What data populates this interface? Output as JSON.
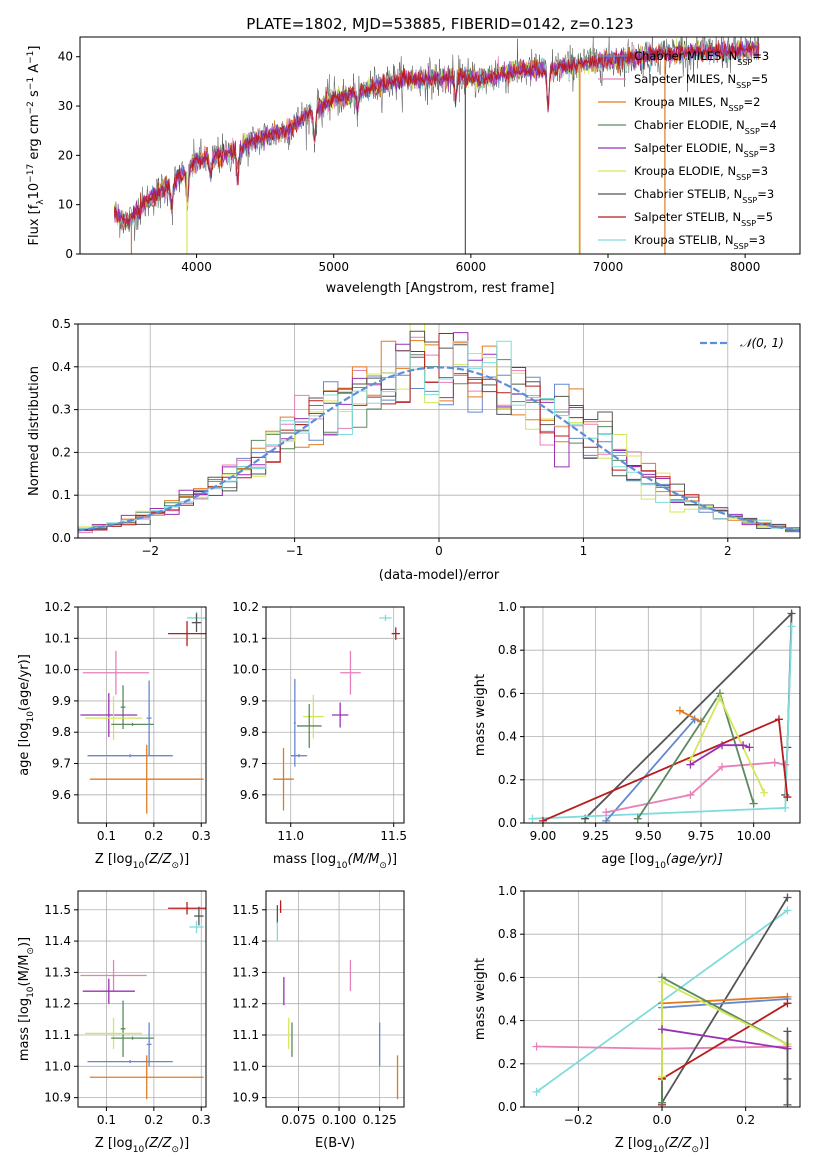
{
  "colors": {
    "chabrier_miles": "#6688cc",
    "salpeter_miles": "#e87fb8",
    "kroupa_miles": "#e07b20",
    "chabrier_elodie": "#5a8a5e",
    "salpeter_elodie": "#9b30b5",
    "kroupa_elodie": "#d6e65a",
    "chabrier_stelib": "#555555",
    "salpeter_stelib": "#b81c1c",
    "kroupa_stelib": "#80dcdc",
    "gauss": "#5b8fd9"
  },
  "chart_data": [
    {
      "id": "spectrum",
      "type": "line",
      "title": "PLATE=1802, MJD=53885, FIBERID=0142, z=0.123",
      "xlabel": "wavelength [Angstrom, rest frame]",
      "ylabel_parts": [
        "Flux [f",
        "λ",
        "10",
        "−17",
        " erg cm",
        "−2",
        " s",
        "−1",
        " A",
        "−1",
        "]"
      ],
      "xlim": [
        3150,
        8400
      ],
      "ylim": [
        0,
        44
      ],
      "xticks": [
        4000,
        5000,
        6000,
        7000,
        8000
      ],
      "yticks": [
        0,
        10,
        20,
        30,
        40
      ],
      "legend": [
        {
          "text": "Chabrier MILES, N",
          "sub": "SSP",
          "tail": "=3",
          "key": "chabrier_miles"
        },
        {
          "text": "Salpeter MILES, N",
          "sub": "SSP",
          "tail": "=5",
          "key": "salpeter_miles"
        },
        {
          "text": "Kroupa MILES, N",
          "sub": "SSP",
          "tail": "=2",
          "key": "kroupa_miles"
        },
        {
          "text": "Chabrier ELODIE, N",
          "sub": "SSP",
          "tail": "=4",
          "key": "chabrier_elodie"
        },
        {
          "text": "Salpeter ELODIE, N",
          "sub": "SSP",
          "tail": "=3",
          "key": "salpeter_elodie"
        },
        {
          "text": "Kroupa ELODIE, N",
          "sub": "SSP",
          "tail": "=3",
          "key": "kroupa_elodie"
        },
        {
          "text": "Chabrier STELIB, N",
          "sub": "SSP",
          "tail": "=3",
          "key": "chabrier_stelib"
        },
        {
          "text": "Salpeter STELIB, N",
          "sub": "SSP",
          "tail": "=5",
          "key": "salpeter_stelib"
        },
        {
          "text": "Kroupa STELIB, N",
          "sub": "SSP",
          "tail": "=3",
          "key": "kroupa_stelib"
        }
      ],
      "continuum": [
        [
          3400,
          8
        ],
        [
          3500,
          6.5
        ],
        [
          3650,
          11
        ],
        [
          3800,
          14
        ],
        [
          3900,
          16
        ],
        [
          4000,
          19
        ],
        [
          4100,
          19.5
        ],
        [
          4250,
          20.5
        ],
        [
          4350,
          22
        ],
        [
          4500,
          24
        ],
        [
          4650,
          25
        ],
        [
          4800,
          28
        ],
        [
          4900,
          30
        ],
        [
          5000,
          31.5
        ],
        [
          5100,
          32
        ],
        [
          5200,
          33
        ],
        [
          5300,
          34
        ],
        [
          5500,
          35.5
        ],
        [
          5700,
          35.5
        ],
        [
          5900,
          36
        ],
        [
          6100,
          35.5
        ],
        [
          6300,
          37
        ],
        [
          6500,
          37.5
        ],
        [
          6700,
          38
        ],
        [
          6900,
          39
        ],
        [
          7100,
          39.5
        ],
        [
          7200,
          40
        ],
        [
          7400,
          40.5
        ],
        [
          7600,
          41
        ],
        [
          7800,
          41
        ],
        [
          8100,
          41.5
        ]
      ],
      "dips": [
        [
          3820,
          5
        ],
        [
          3933,
          6
        ],
        [
          4102,
          4
        ],
        [
          4300,
          6
        ],
        [
          4861,
          6
        ],
        [
          5175,
          4
        ],
        [
          5890,
          5
        ],
        [
          6563,
          8
        ]
      ],
      "spikes": [
        {
          "x": 6790,
          "key": "kroupa_elodie"
        },
        {
          "x": 6795,
          "key": "kroupa_miles"
        },
        {
          "x": 7415,
          "key": "kroupa_miles"
        },
        {
          "x": 3930,
          "key": "kroupa_elodie"
        },
        {
          "x": 3525,
          "key": "kroupa_miles"
        },
        {
          "x": 5960,
          "key": "chabrier_stelib"
        }
      ]
    },
    {
      "id": "residual-hist",
      "type": "histogram",
      "xlabel": "(data-model)/error",
      "ylabel": "Normed distribution",
      "xlim": [
        -2.5,
        2.5
      ],
      "ylim": [
        0,
        0.5
      ],
      "xticks": [
        -2,
        -1,
        0,
        1,
        2
      ],
      "yticks": [
        0.0,
        0.1,
        0.2,
        0.3,
        0.4,
        0.5
      ],
      "bin_width": 0.1,
      "gauss_label": "𝒩(0, 1)",
      "series_keys": [
        "chabrier_miles",
        "salpeter_miles",
        "kroupa_miles",
        "chabrier_elodie",
        "salpeter_elodie",
        "kroupa_elodie",
        "chabrier_stelib",
        "salpeter_stelib",
        "kroupa_stelib"
      ]
    },
    {
      "id": "z-age",
      "type": "errorbar",
      "xlabel_parts": [
        "Z [log",
        "10",
        "(Z/Z",
        "⊙",
        ")]"
      ],
      "ylabel_parts": [
        "age  [log",
        "10",
        "(age/yr)]"
      ],
      "xlim": [
        0.04,
        0.31
      ],
      "ylim": [
        9.51,
        10.2
      ],
      "xticks": [
        0.1,
        0.2,
        0.3
      ],
      "yticks": [
        9.6,
        9.7,
        9.8,
        9.9,
        10.0,
        10.1,
        10.2
      ],
      "points": [
        {
          "key": "salpeter_stelib",
          "x": 0.27,
          "y": 10.115,
          "ex": 0.04,
          "ey": 0.04
        },
        {
          "key": "kroupa_stelib",
          "x": 0.29,
          "y": 10.165,
          "ex": 0.02,
          "ey": 0.02
        },
        {
          "key": "chabrier_stelib",
          "x": 0.29,
          "y": 10.15,
          "ex": 0.01,
          "ey": 0.03
        },
        {
          "key": "salpeter_miles",
          "x": 0.12,
          "y": 9.99,
          "ex": 0.07,
          "ey": 0.07
        },
        {
          "key": "chabrier_elodie",
          "x": 0.135,
          "y": 9.88,
          "ex": 0.005,
          "ey": 0.07
        },
        {
          "key": "salpeter_elodie",
          "x": 0.105,
          "y": 9.855,
          "ex": 0.06,
          "ey": 0.07
        },
        {
          "key": "kroupa_elodie",
          "x": 0.115,
          "y": 9.845,
          "ex": 0.06,
          "ey": 0.07
        },
        {
          "key": "chabrier_elodie",
          "x": 0.155,
          "y": 9.825,
          "ex": 0.045,
          "ey": 0.005
        },
        {
          "key": "chabrier_miles",
          "x": 0.19,
          "y": 9.845,
          "ex": 0.005,
          "ey": 0.12
        },
        {
          "key": "chabrier_miles",
          "x": 0.15,
          "y": 9.725,
          "ex": 0.09,
          "ey": 0.005
        },
        {
          "key": "kroupa_miles",
          "x": 0.185,
          "y": 9.65,
          "ex": 0.12,
          "ey": 0.11
        }
      ]
    },
    {
      "id": "mass-age",
      "type": "errorbar",
      "xlabel_parts": [
        "mass [log",
        "10",
        "(M/M",
        "⊙",
        ")]"
      ],
      "ylabel_parts": [],
      "xlim": [
        10.88,
        11.55
      ],
      "ylim": [
        9.51,
        10.2
      ],
      "xticks": [
        11.0,
        11.5
      ],
      "yticks": [
        9.6,
        9.7,
        9.8,
        9.9,
        10.0,
        10.1,
        10.2
      ],
      "points": [
        {
          "key": "salpeter_stelib",
          "x": 11.51,
          "y": 10.115,
          "ex": 0.02,
          "ey": 0.02
        },
        {
          "key": "kroupa_stelib",
          "x": 11.46,
          "y": 10.165,
          "ex": 0.03,
          "ey": 0.01
        },
        {
          "key": "salpeter_miles",
          "x": 11.29,
          "y": 9.99,
          "ex": 0.05,
          "ey": 0.07
        },
        {
          "key": "salpeter_elodie",
          "x": 11.24,
          "y": 9.855,
          "ex": 0.04,
          "ey": 0.04
        },
        {
          "key": "kroupa_elodie",
          "x": 11.11,
          "y": 9.85,
          "ex": 0.05,
          "ey": 0.07
        },
        {
          "key": "chabrier_elodie",
          "x": 11.09,
          "y": 9.82,
          "ex": 0.06,
          "ey": 0.07
        },
        {
          "key": "chabrier_miles",
          "x": 11.02,
          "y": 9.83,
          "ex": 0.005,
          "ey": 0.14
        },
        {
          "key": "chabrier_miles",
          "x": 11.04,
          "y": 9.725,
          "ex": 0.04,
          "ey": 0.005
        },
        {
          "key": "kroupa_miles",
          "x": 10.965,
          "y": 9.65,
          "ex": 0.05,
          "ey": 0.1
        }
      ]
    },
    {
      "id": "age-massweight",
      "type": "line",
      "xlabel_parts": [
        "age  [log",
        "10",
        "(age/yr)]"
      ],
      "ylabel": "mass weight",
      "xlim": [
        8.91,
        10.22
      ],
      "ylim": [
        0,
        1
      ],
      "xticks": [
        9.0,
        9.25,
        9.5,
        9.75,
        10.0
      ],
      "yticks": [
        0.0,
        0.2,
        0.4,
        0.6,
        0.8,
        1.0
      ],
      "series": [
        {
          "key": "chabrier_stelib",
          "points": [
            [
              9.2,
              0.02
            ],
            [
              10.18,
              0.97
            ],
            [
              10.16,
              0.35
            ],
            [
              10.15,
              0.13
            ]
          ]
        },
        {
          "key": "kroupa_stelib",
          "points": [
            [
              8.95,
              0.02
            ],
            [
              10.15,
              0.07
            ],
            [
              10.18,
              0.91
            ]
          ]
        },
        {
          "key": "chabrier_miles",
          "points": [
            [
              9.3,
              0.01
            ],
            [
              9.72,
              0.48
            ],
            [
              9.75,
              0.47
            ]
          ]
        },
        {
          "key": "kroupa_miles",
          "points": [
            [
              9.65,
              0.52
            ],
            [
              9.75,
              0.47
            ]
          ]
        },
        {
          "key": "salpeter_miles",
          "points": [
            [
              9.3,
              0.05
            ],
            [
              9.7,
              0.13
            ],
            [
              9.85,
              0.26
            ],
            [
              10.1,
              0.28
            ],
            [
              10.15,
              0.27
            ]
          ]
        },
        {
          "key": "salpeter_stelib",
          "points": [
            [
              9.0,
              0.01
            ],
            [
              10.12,
              0.48
            ],
            [
              10.16,
              0.12
            ]
          ]
        },
        {
          "key": "chabrier_elodie",
          "points": [
            [
              9.45,
              0.02
            ],
            [
              9.84,
              0.6
            ],
            [
              10.0,
              0.09
            ]
          ]
        },
        {
          "key": "kroupa_elodie",
          "points": [
            [
              9.7,
              0.29
            ],
            [
              9.84,
              0.58
            ],
            [
              10.05,
              0.14
            ]
          ]
        },
        {
          "key": "salpeter_elodie",
          "points": [
            [
              9.7,
              0.27
            ],
            [
              9.85,
              0.36
            ],
            [
              9.95,
              0.36
            ],
            [
              9.98,
              0.35
            ]
          ]
        }
      ]
    },
    {
      "id": "z-mass",
      "type": "errorbar",
      "xlabel_parts": [
        "Z [log",
        "10",
        "(Z/Z",
        "⊙",
        ")]"
      ],
      "ylabel_parts": [
        "mass [log",
        "10",
        "(M/M",
        "⊙",
        ")]"
      ],
      "xlim": [
        0.04,
        0.31
      ],
      "ylim": [
        10.87,
        11.56
      ],
      "xticks": [
        0.1,
        0.2,
        0.3
      ],
      "yticks": [
        10.9,
        11.0,
        11.1,
        11.2,
        11.3,
        11.4,
        11.5
      ],
      "points": [
        {
          "key": "salpeter_stelib",
          "x": 0.27,
          "y": 11.505,
          "ex": 0.04,
          "ey": 0.02
        },
        {
          "key": "chabrier_stelib",
          "x": 0.295,
          "y": 11.48,
          "ex": 0.01,
          "ey": 0.03
        },
        {
          "key": "kroupa_stelib",
          "x": 0.29,
          "y": 11.445,
          "ex": 0.015,
          "ey": 0.02
        },
        {
          "key": "salpeter_miles",
          "x": 0.115,
          "y": 11.29,
          "ex": 0.07,
          "ey": 0.05
        },
        {
          "key": "salpeter_elodie",
          "x": 0.105,
          "y": 11.24,
          "ex": 0.055,
          "ey": 0.04
        },
        {
          "key": "chabrier_elodie",
          "x": 0.135,
          "y": 11.12,
          "ex": 0.005,
          "ey": 0.09
        },
        {
          "key": "kroupa_elodie",
          "x": 0.115,
          "y": 11.105,
          "ex": 0.06,
          "ey": 0.05
        },
        {
          "key": "chabrier_elodie",
          "x": 0.155,
          "y": 11.09,
          "ex": 0.045,
          "ey": 0.005
        },
        {
          "key": "chabrier_miles",
          "x": 0.19,
          "y": 11.07,
          "ex": 0.005,
          "ey": 0.07
        },
        {
          "key": "chabrier_miles",
          "x": 0.15,
          "y": 11.015,
          "ex": 0.09,
          "ey": 0.005
        },
        {
          "key": "kroupa_miles",
          "x": 0.185,
          "y": 10.965,
          "ex": 0.12,
          "ey": 0.07
        }
      ]
    },
    {
      "id": "ebv-mass",
      "type": "errorbar",
      "xlabel": "E(B-V)",
      "ylabel_parts": [],
      "xlim": [
        0.055,
        0.14
      ],
      "ylim": [
        10.87,
        11.56
      ],
      "xticks": [
        0.075,
        0.1,
        0.125
      ],
      "yticks": [
        10.9,
        11.0,
        11.1,
        11.2,
        11.3,
        11.4,
        11.5
      ],
      "points": [
        {
          "key": "salpeter_stelib",
          "x": 0.064,
          "y": 11.51,
          "ex": 0,
          "ey": 0.02
        },
        {
          "key": "chabrier_stelib",
          "x": 0.062,
          "y": 11.485,
          "ex": 0,
          "ey": 0.03
        },
        {
          "key": "kroupa_stelib",
          "x": 0.062,
          "y": 11.43,
          "ex": 0,
          "ey": 0.03
        },
        {
          "key": "salpeter_miles",
          "x": 0.107,
          "y": 11.29,
          "ex": 0,
          "ey": 0.05
        },
        {
          "key": "salpeter_elodie",
          "x": 0.066,
          "y": 11.24,
          "ex": 0,
          "ey": 0.045
        },
        {
          "key": "kroupa_elodie",
          "x": 0.069,
          "y": 11.105,
          "ex": 0,
          "ey": 0.05
        },
        {
          "key": "chabrier_elodie",
          "x": 0.071,
          "y": 11.085,
          "ex": 0,
          "ey": 0.055
        },
        {
          "key": "chabrier_miles",
          "x": 0.125,
          "y": 11.07,
          "ex": 0,
          "ey": 0.07
        },
        {
          "key": "kroupa_miles",
          "x": 0.136,
          "y": 10.965,
          "ex": 0,
          "ey": 0.07
        }
      ]
    },
    {
      "id": "z-massweight",
      "type": "line",
      "xlabel_parts": [
        "Z [log",
        "10",
        "(Z/Z",
        "⊙",
        ")]"
      ],
      "ylabel": "mass weight",
      "xlim": [
        -0.33,
        0.33
      ],
      "ylim": [
        0,
        1
      ],
      "xticks": [
        -0.2,
        0.0,
        0.2
      ],
      "yticks": [
        0.0,
        0.2,
        0.4,
        0.6,
        0.8,
        1.0
      ],
      "series": [
        {
          "key": "kroupa_stelib",
          "points": [
            [
              -0.3,
              0.07
            ],
            [
              0.3,
              0.91
            ]
          ]
        },
        {
          "key": "salpeter_miles",
          "points": [
            [
              -0.3,
              0.28
            ],
            [
              0.0,
              0.27
            ],
            [
              0.3,
              0.28
            ]
          ]
        },
        {
          "key": "chabrier_stelib",
          "points": [
            [
              0.0,
              0.02
            ],
            [
              0.3,
              0.97
            ]
          ]
        },
        {
          "key": "kroupa_miles",
          "points": [
            [
              0.0,
              0.13
            ],
            [
              0.0,
              0.48
            ],
            [
              0.3,
              0.51
            ]
          ]
        },
        {
          "key": "chabrier_miles",
          "points": [
            [
              0.0,
              0.01
            ],
            [
              0.0,
              0.46
            ],
            [
              0.3,
              0.5
            ]
          ]
        },
        {
          "key": "salpeter_stelib",
          "points": [
            [
              0.0,
              0.01
            ],
            [
              0.0,
              0.13
            ],
            [
              0.3,
              0.48
            ]
          ]
        },
        {
          "key": "chabrier_elodie",
          "points": [
            [
              0.0,
              0.02
            ],
            [
              0.0,
              0.6
            ],
            [
              0.3,
              0.29
            ]
          ]
        },
        {
          "key": "kroupa_elodie",
          "points": [
            [
              0.0,
              0.14
            ],
            [
              0.0,
              0.58
            ],
            [
              0.3,
              0.29
            ]
          ]
        },
        {
          "key": "salpeter_elodie",
          "points": [
            [
              0.0,
              0.36
            ],
            [
              0.3,
              0.27
            ]
          ]
        },
        {
          "key": "chabrier_stelib",
          "points": [
            [
              0.3,
              0.01
            ],
            [
              0.3,
              0.35
            ],
            [
              0.3,
              0.13
            ]
          ]
        }
      ]
    }
  ]
}
